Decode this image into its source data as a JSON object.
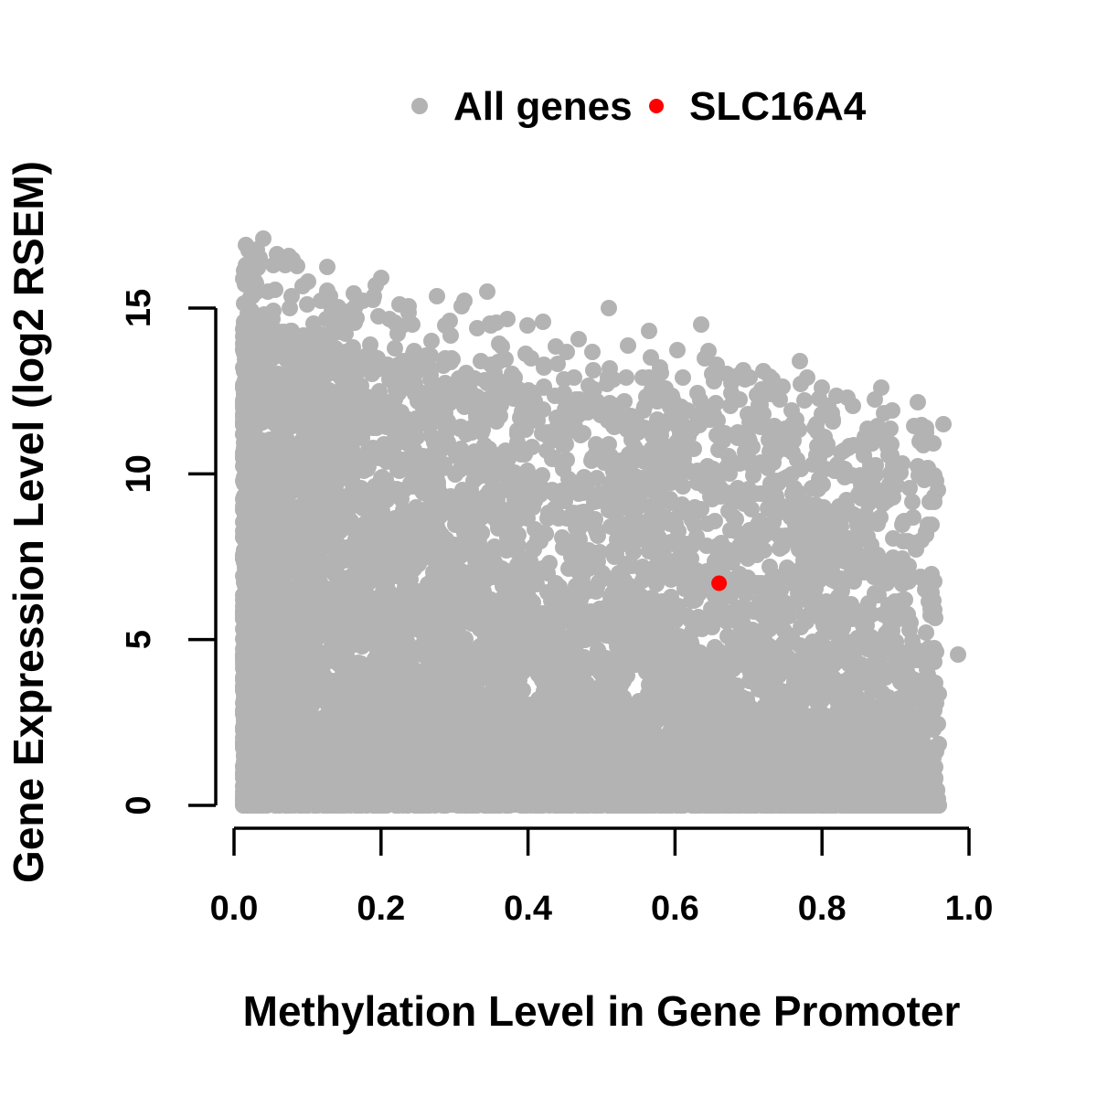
{
  "figure": {
    "background_color": "#ffffff",
    "description": "Scatter plot of gene expression versus promoter methylation; all genes in gray with one gene (SLC16A4) highlighted in red"
  },
  "legend": {
    "position": "top-center",
    "items": [
      {
        "label": "All genes",
        "color": "#b3b3b3"
      },
      {
        "label": "SLC16A4",
        "color": "#ff0000"
      }
    ]
  },
  "chart_data": {
    "type": "scatter",
    "xlabel": "Methylation Level in Gene Promoter",
    "ylabel": "Gene Expression Level (log2 RSEM)",
    "xlim": [
      0,
      1.0
    ],
    "ylim": [
      0,
      17.2
    ],
    "xticks": [
      0,
      0.2,
      0.4,
      0.6,
      0.8,
      1.0
    ],
    "xtick_labels": [
      "0.0",
      "0.2",
      "0.4",
      "0.6",
      "0.8",
      "1.0"
    ],
    "yticks": [
      0,
      5,
      10,
      15
    ],
    "ytick_labels": [
      "0",
      "5",
      "10",
      "15"
    ],
    "grid": false,
    "axis_color": "#000000",
    "series": [
      {
        "name": "All genes",
        "color": "#b3b3b3",
        "marker": "filled-circle",
        "role": "background-cloud",
        "n_total_approx": 9200,
        "trend": "dense cloud spanning x 0.01-0.97 and y 0-17; negative correlation: upper envelope of expression falls from ~15 at low methylation to ~11.5 at high methylation; solid near y=0 across the full x range; density thins toward high methylation",
        "generator": {
          "seed": 42,
          "n_core": 7800,
          "n_bottom_band": 900,
          "n_right_fill": 500,
          "tail_fraction": 0.045,
          "x_min": 0.012,
          "x_span": 0.943,
          "x_skew_power": 1.55,
          "dense_top_poly": [
            14.6,
            -6.3,
            2.6
          ],
          "max_top_linear": [
            17.0,
            -5.3
          ],
          "y_power_base": 1.45,
          "y_power_x_coef": 1.6,
          "bottom_y_max": 2.8,
          "bottom_y_power": 2.2,
          "right_x_min": 0.52,
          "right_x_span": 0.44
        },
        "landmark_points": [
          [
            0.04,
            17.1
          ],
          [
            0.07,
            16.3
          ],
          [
            0.03,
            15.75
          ],
          [
            0.046,
            15.5
          ],
          [
            0.1,
            15.1
          ],
          [
            0.13,
            15.35
          ],
          [
            0.2,
            15.9
          ],
          [
            0.165,
            15.05
          ],
          [
            0.225,
            15.1
          ],
          [
            0.31,
            15.05
          ],
          [
            0.345,
            15.5
          ],
          [
            0.42,
            14.6
          ],
          [
            0.51,
            15.0
          ],
          [
            0.565,
            14.3
          ],
          [
            0.635,
            14.5
          ],
          [
            0.645,
            13.7
          ],
          [
            0.72,
            13.1
          ],
          [
            0.77,
            13.4
          ],
          [
            0.78,
            12.9
          ],
          [
            0.8,
            12.6
          ],
          [
            0.88,
            12.6
          ],
          [
            0.93,
            12.15
          ],
          [
            0.955,
            9.8
          ],
          [
            0.965,
            11.5
          ],
          [
            0.985,
            4.55
          ]
        ]
      },
      {
        "name": "SLC16A4",
        "color": "#ff0000",
        "marker": "filled-circle",
        "role": "highlight",
        "points": [
          [
            0.66,
            6.7
          ]
        ]
      }
    ]
  }
}
